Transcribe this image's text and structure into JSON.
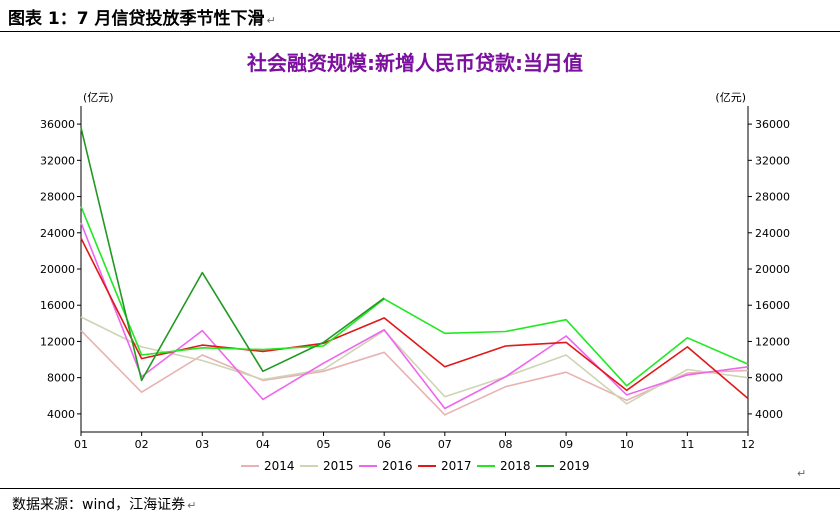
{
  "figure": {
    "title": "图表 1：7 月信贷投放季节性下滑",
    "return_mark": "↵",
    "source": "数据来源：wind，江海证券"
  },
  "chart_data": {
    "type": "line",
    "title": "社会融资规模:新增人民币贷款:当月值",
    "unit_left": "(亿元)",
    "unit_right": "(亿元)",
    "categories": [
      "01",
      "02",
      "03",
      "04",
      "05",
      "06",
      "07",
      "08",
      "09",
      "10",
      "11",
      "12"
    ],
    "ylim": [
      2000,
      38000
    ],
    "yticks": [
      4000,
      8000,
      12000,
      16000,
      20000,
      24000,
      28000,
      32000,
      36000
    ],
    "grid": false,
    "legend_position": "bottom",
    "series": [
      {
        "name": "2014",
        "color": "#e8b2b2",
        "values": [
          13200,
          6400,
          10500,
          7700,
          8700,
          10800,
          3900,
          7000,
          8600,
          5500,
          8500,
          8800
        ]
      },
      {
        "name": "2015",
        "color": "#cfd4b4",
        "values": [
          14700,
          11400,
          9900,
          7800,
          8900,
          13200,
          5900,
          8100,
          10500,
          5100,
          8900,
          8000
        ]
      },
      {
        "name": "2016",
        "color": "#ee66ee",
        "values": [
          25100,
          8100,
          13200,
          5600,
          9600,
          13300,
          4600,
          8100,
          12600,
          6100,
          8300,
          9200
        ]
      },
      {
        "name": "2017",
        "color": "#e01818",
        "values": [
          23400,
          10100,
          11600,
          10900,
          11800,
          14600,
          9200,
          11500,
          11900,
          6600,
          11400,
          5700
        ]
      },
      {
        "name": "2018",
        "color": "#22e822",
        "values": [
          26900,
          10500,
          11300,
          11100,
          11500,
          16700,
          12900,
          13100,
          14400,
          7100,
          12400,
          9500
        ]
      },
      {
        "name": "2019",
        "color": "#229922",
        "values": [
          35600,
          7700,
          19600,
          8700,
          11900,
          16800,
          null,
          null,
          null,
          null,
          null,
          null
        ]
      }
    ]
  }
}
